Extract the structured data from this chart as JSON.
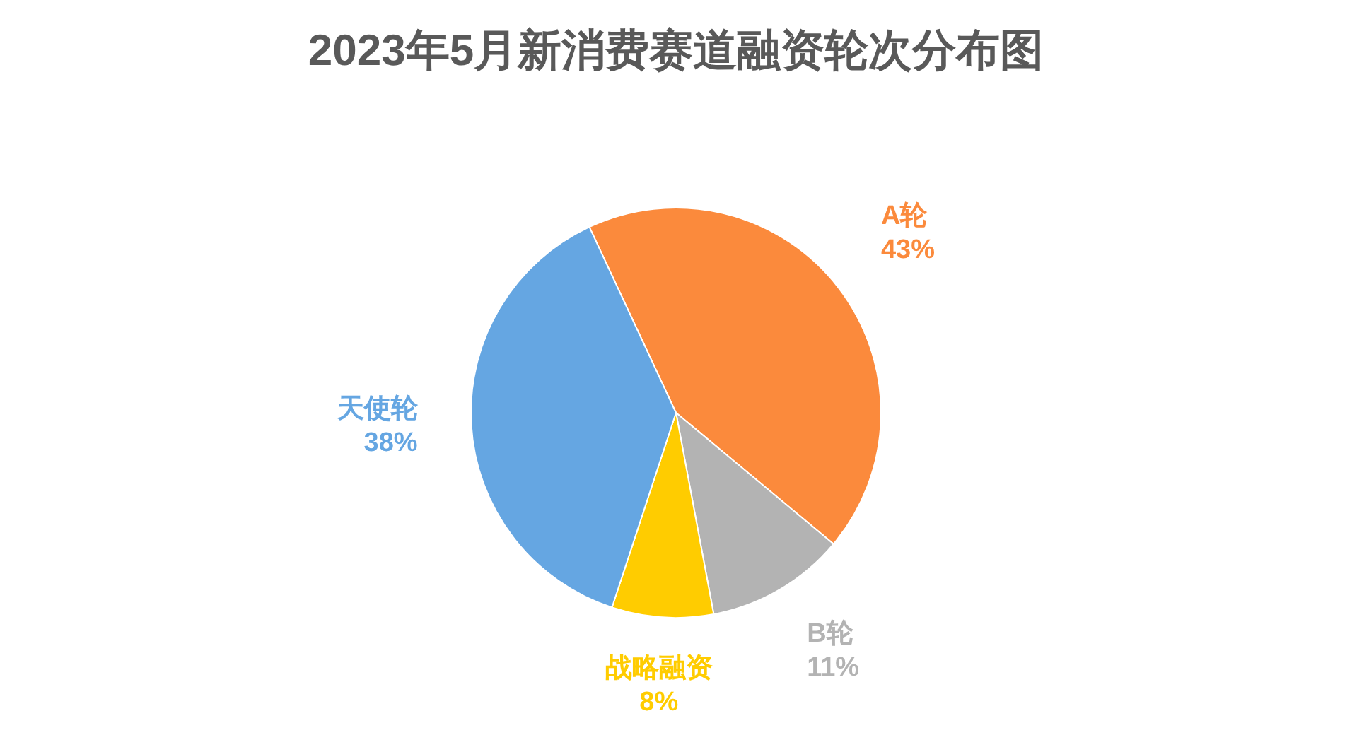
{
  "chart_data": {
    "type": "pie",
    "title": "2023年5月新消费赛道融资轮次分布图",
    "categories": [
      "A轮",
      "B轮",
      "战略融资",
      "天使轮"
    ],
    "values": [
      43,
      11,
      8,
      38
    ],
    "colors": [
      "#fb8a3c",
      "#b3b3b3",
      "#ffcc00",
      "#65a6e2"
    ],
    "value_labels": [
      "43%",
      "11%",
      "8%",
      "38%"
    ]
  }
}
